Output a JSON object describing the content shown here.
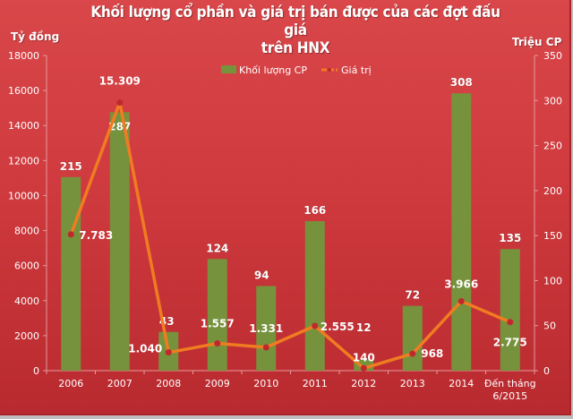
{
  "chart_data": {
    "type": "bar+line",
    "title": "Khối lượng cổ phần và giá trị bán được của các đợt đấu giá trên HNX",
    "title_lines": [
      "Khối lượng cổ phần và giá trị bán được của các đợt đấu giá",
      "trên HNX"
    ],
    "ylabel_left": "Tỷ đồng",
    "ylabel_right": "Triệu CP",
    "ylim_left": [
      0,
      18000
    ],
    "ylim_right": [
      0,
      350
    ],
    "yticks_left": [
      0,
      2000,
      4000,
      6000,
      8000,
      10000,
      12000,
      14000,
      16000,
      18000
    ],
    "yticks_right": [
      0,
      50,
      100,
      150,
      200,
      250,
      300,
      350
    ],
    "categories": [
      "2006",
      "2007",
      "2008",
      "2009",
      "2010",
      "2011",
      "2012",
      "2013",
      "2014",
      "Đến tháng 6/2015"
    ],
    "category_lines": [
      [
        "2006"
      ],
      [
        "2007"
      ],
      [
        "2008"
      ],
      [
        "2009"
      ],
      [
        "2010"
      ],
      [
        "2011"
      ],
      [
        "2012"
      ],
      [
        "2013"
      ],
      [
        "2014"
      ],
      [
        "Đến tháng",
        "6/2015"
      ]
    ],
    "legend_position": "top",
    "grid": false,
    "series": [
      {
        "name": "Khối lượng CP",
        "type": "bar",
        "axis": "right",
        "color": "#76923c",
        "values": [
          215,
          287,
          43,
          124,
          94,
          166,
          12,
          72,
          308,
          135
        ],
        "labels": [
          "215",
          "287",
          "43",
          "124",
          "94",
          "166",
          "12",
          "72",
          "308",
          "135"
        ]
      },
      {
        "name": "Giá trị",
        "type": "line",
        "axis": "left",
        "color": "#f07c22",
        "marker_color": "#c0282d",
        "values": [
          7783,
          15309,
          1040,
          1557,
          1331,
          2555,
          140,
          968,
          3966,
          2775
        ],
        "labels": [
          "7.783",
          "15.309",
          "1.040",
          "1.557",
          "1.331",
          "2.555",
          "140",
          "968",
          "3.966",
          "2.775"
        ]
      }
    ]
  },
  "colors": {
    "background_top": "#d9474a",
    "background_bottom": "#b82a2f",
    "text": "#ffffff",
    "axis": "#e59a9a"
  }
}
